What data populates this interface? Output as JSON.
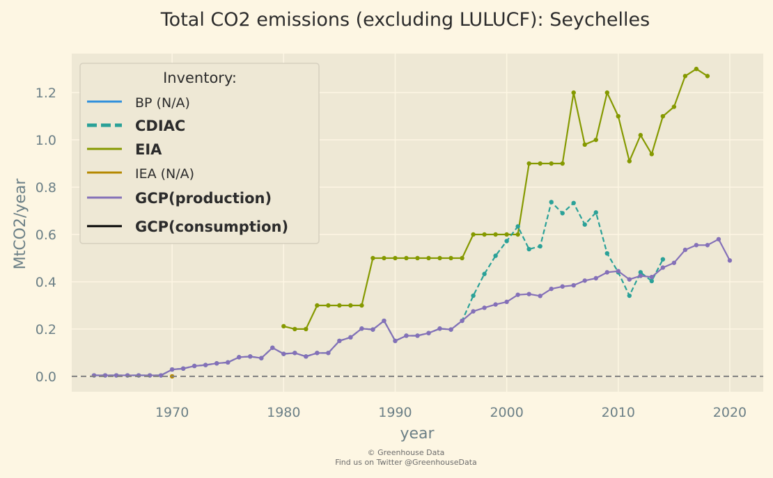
{
  "chart_data": {
    "type": "line",
    "title": "Total CO2 emissions (excluding LULUCF): Seychelles",
    "xlabel": "year",
    "ylabel": "MtCO2/year",
    "xlim": [
      1961,
      2023
    ],
    "ylim": [
      -0.065,
      1.365
    ],
    "x_ticks": [
      1970,
      1980,
      1990,
      2000,
      2010,
      2020
    ],
    "y_ticks": [
      0.0,
      0.2,
      0.4,
      0.6,
      0.8,
      1.0,
      1.2
    ],
    "grid": true,
    "reference_line": {
      "y": 0.0,
      "style": "dashed",
      "color": "#7f7f7f"
    },
    "legend": {
      "title": "Inventory:",
      "position": "top-left"
    },
    "series": [
      {
        "name": "BP (N/A)",
        "color": "#2e8fdc",
        "style": "solid",
        "bold": false,
        "points": []
      },
      {
        "name": "CDIAC",
        "color": "#2aa198",
        "style": "dashed",
        "bold": true,
        "points": [
          [
            1963,
            0.004
          ],
          [
            1964,
            0.004
          ],
          [
            1965,
            0.004
          ],
          [
            1966,
            0.004
          ],
          [
            1967,
            0.004
          ],
          [
            1968,
            0.004
          ],
          [
            1969,
            0.004
          ],
          [
            1970,
            0.029
          ],
          [
            1971,
            0.033
          ],
          [
            1972,
            0.044
          ],
          [
            1973,
            0.048
          ],
          [
            1974,
            0.055
          ],
          [
            1975,
            0.059
          ],
          [
            1976,
            0.081
          ],
          [
            1977,
            0.084
          ],
          [
            1978,
            0.077
          ],
          [
            1979,
            0.121
          ],
          [
            1980,
            0.095
          ],
          [
            1981,
            0.099
          ],
          [
            1982,
            0.084
          ],
          [
            1983,
            0.099
          ],
          [
            1984,
            0.099
          ],
          [
            1985,
            0.15
          ],
          [
            1986,
            0.165
          ],
          [
            1987,
            0.202
          ],
          [
            1988,
            0.198
          ],
          [
            1989,
            0.235
          ],
          [
            1990,
            0.15
          ],
          [
            1991,
            0.172
          ],
          [
            1992,
            0.172
          ],
          [
            1993,
            0.183
          ],
          [
            1994,
            0.202
          ],
          [
            1995,
            0.198
          ],
          [
            1996,
            0.235
          ],
          [
            1997,
            0.341
          ],
          [
            1998,
            0.433
          ],
          [
            1999,
            0.51
          ],
          [
            2000,
            0.572
          ],
          [
            2001,
            0.634
          ],
          [
            2002,
            0.538
          ],
          [
            2003,
            0.55
          ],
          [
            2004,
            0.737
          ],
          [
            2005,
            0.69
          ],
          [
            2006,
            0.733
          ],
          [
            2007,
            0.642
          ],
          [
            2008,
            0.693
          ],
          [
            2009,
            0.52
          ],
          [
            2010,
            0.44
          ],
          [
            2011,
            0.341
          ],
          [
            2012,
            0.44
          ],
          [
            2013,
            0.403
          ],
          [
            2014,
            0.495
          ]
        ]
      },
      {
        "name": "EIA",
        "color": "#859900",
        "style": "solid",
        "bold": true,
        "points": [
          [
            1980,
            0.212
          ],
          [
            1981,
            0.2
          ],
          [
            1982,
            0.2
          ],
          [
            1983,
            0.3
          ],
          [
            1984,
            0.3
          ],
          [
            1985,
            0.3
          ],
          [
            1986,
            0.3
          ],
          [
            1987,
            0.3
          ],
          [
            1988,
            0.5
          ],
          [
            1989,
            0.5
          ],
          [
            1990,
            0.5
          ],
          [
            1991,
            0.5
          ],
          [
            1992,
            0.5
          ],
          [
            1993,
            0.5
          ],
          [
            1994,
            0.5
          ],
          [
            1995,
            0.5
          ],
          [
            1996,
            0.5
          ],
          [
            1997,
            0.6
          ],
          [
            1998,
            0.6
          ],
          [
            1999,
            0.6
          ],
          [
            2000,
            0.6
          ],
          [
            2001,
            0.6
          ],
          [
            2002,
            0.9
          ],
          [
            2003,
            0.9
          ],
          [
            2004,
            0.9
          ],
          [
            2005,
            0.9
          ],
          [
            2006,
            1.2
          ],
          [
            2007,
            0.98
          ],
          [
            2008,
            1.0
          ],
          [
            2009,
            1.2
          ],
          [
            2010,
            1.1
          ],
          [
            2011,
            0.91
          ],
          [
            2012,
            1.02
          ],
          [
            2013,
            0.94
          ],
          [
            2014,
            1.1
          ],
          [
            2015,
            1.14
          ],
          [
            2016,
            1.27
          ],
          [
            2017,
            1.3
          ],
          [
            2018,
            1.27
          ]
        ]
      },
      {
        "name": "IEA (N/A)",
        "color": "#b58900",
        "style": "solid",
        "bold": false,
        "points": [
          [
            1970,
            0.0
          ]
        ]
      },
      {
        "name": "GCP(production)",
        "color": "#8470b8",
        "style": "solid",
        "bold": true,
        "points": [
          [
            1963,
            0.004
          ],
          [
            1964,
            0.004
          ],
          [
            1965,
            0.004
          ],
          [
            1966,
            0.004
          ],
          [
            1967,
            0.004
          ],
          [
            1968,
            0.004
          ],
          [
            1969,
            0.004
          ],
          [
            1970,
            0.029
          ],
          [
            1971,
            0.033
          ],
          [
            1972,
            0.044
          ],
          [
            1973,
            0.048
          ],
          [
            1974,
            0.055
          ],
          [
            1975,
            0.059
          ],
          [
            1976,
            0.081
          ],
          [
            1977,
            0.084
          ],
          [
            1978,
            0.077
          ],
          [
            1979,
            0.121
          ],
          [
            1980,
            0.095
          ],
          [
            1981,
            0.099
          ],
          [
            1982,
            0.084
          ],
          [
            1983,
            0.099
          ],
          [
            1984,
            0.099
          ],
          [
            1985,
            0.15
          ],
          [
            1986,
            0.165
          ],
          [
            1987,
            0.202
          ],
          [
            1988,
            0.198
          ],
          [
            1989,
            0.235
          ],
          [
            1990,
            0.15
          ],
          [
            1991,
            0.172
          ],
          [
            1992,
            0.172
          ],
          [
            1993,
            0.183
          ],
          [
            1994,
            0.202
          ],
          [
            1995,
            0.198
          ],
          [
            1996,
            0.235
          ],
          [
            1997,
            0.275
          ],
          [
            1998,
            0.29
          ],
          [
            1999,
            0.304
          ],
          [
            2000,
            0.315
          ],
          [
            2001,
            0.345
          ],
          [
            2002,
            0.348
          ],
          [
            2003,
            0.34
          ],
          [
            2004,
            0.37
          ],
          [
            2005,
            0.38
          ],
          [
            2006,
            0.385
          ],
          [
            2007,
            0.405
          ],
          [
            2008,
            0.415
          ],
          [
            2009,
            0.44
          ],
          [
            2010,
            0.445
          ],
          [
            2011,
            0.41
          ],
          [
            2012,
            0.425
          ],
          [
            2013,
            0.42
          ],
          [
            2014,
            0.46
          ],
          [
            2015,
            0.48
          ],
          [
            2016,
            0.535
          ],
          [
            2017,
            0.555
          ],
          [
            2018,
            0.555
          ],
          [
            2019,
            0.58
          ],
          [
            2020,
            0.49
          ]
        ]
      },
      {
        "name": "GCP(consumption)",
        "color": "#000000",
        "style": "solid",
        "bold": true,
        "points": []
      }
    ]
  },
  "footer": {
    "line1": "© Greenhouse Data",
    "line2": "Find us on Twitter @GreenhouseData"
  }
}
